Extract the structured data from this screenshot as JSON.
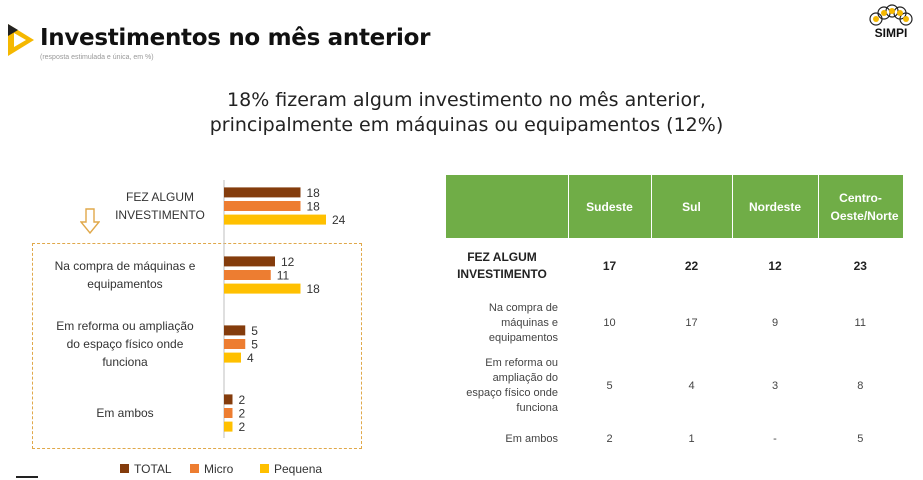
{
  "header": {
    "title": "Investimentos no mês anterior",
    "subtitle": "(resposta estimulada e única, em %)",
    "logo_text": "SIMPI"
  },
  "headline": {
    "line1": "18% fizeram algum investimento no mês anterior,",
    "line2": "principalmente em máquinas ou equipamentos (12%)"
  },
  "colors": {
    "total": "#843c0c",
    "micro": "#ed7d31",
    "pequena": "#ffc000",
    "table_header": "#70ad47",
    "accent": "#f5b800"
  },
  "chart_data": {
    "type": "bar",
    "orientation": "horizontal",
    "categories": [
      [
        "FEZ ALGUM",
        "INVESTIMENTO"
      ],
      [
        "Na compra de máquinas e",
        "equipamentos"
      ],
      [
        "Em reforma ou ampliação",
        "do espaço físico onde",
        "funciona"
      ],
      [
        "Em ambos"
      ]
    ],
    "series": [
      {
        "name": "TOTAL",
        "values": [
          18,
          12,
          5,
          2
        ]
      },
      {
        "name": "Micro",
        "values": [
          18,
          11,
          5,
          2
        ]
      },
      {
        "name": "Pequena",
        "values": [
          24,
          18,
          4,
          2
        ]
      }
    ],
    "legend_position": "bottom",
    "grid": false
  },
  "table": {
    "columns": [
      "Sudeste",
      "Sul",
      "Nordeste",
      "Centro-Oeste/Norte"
    ],
    "rows": [
      {
        "label": "FEZ ALGUM INVESTIMENTO",
        "values": [
          "17",
          "22",
          "12",
          "23"
        ]
      },
      {
        "label": "Na compra de máquinas e equipamentos",
        "values": [
          "10",
          "17",
          "9",
          "11"
        ]
      },
      {
        "label": "Em reforma ou ampliação do espaço físico onde funciona",
        "values": [
          "5",
          "4",
          "3",
          "8"
        ]
      },
      {
        "label": "Em ambos",
        "values": [
          "2",
          "1",
          "-",
          "5"
        ]
      }
    ]
  }
}
